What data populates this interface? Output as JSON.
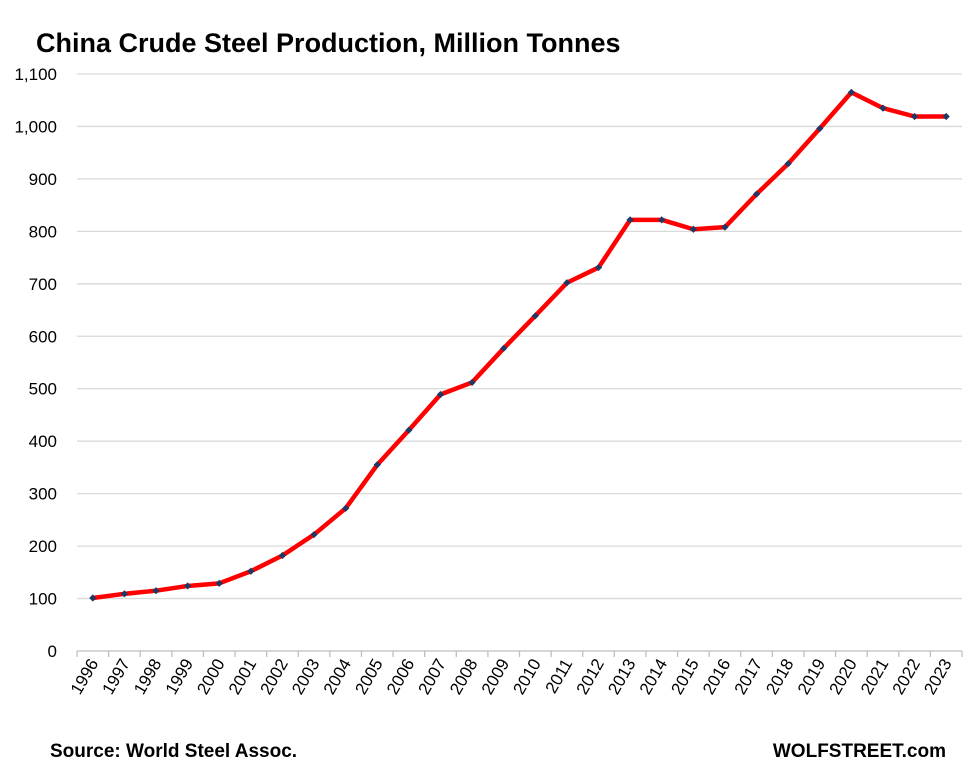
{
  "chart_data": {
    "type": "line",
    "title": "China Crude Steel Production, Million Tonnes",
    "xlabel": "",
    "ylabel": "",
    "categories": [
      "1996",
      "1997",
      "1998",
      "1999",
      "2000",
      "2001",
      "2002",
      "2003",
      "2004",
      "2005",
      "2006",
      "2007",
      "2008",
      "2009",
      "2010",
      "2011",
      "2012",
      "2013",
      "2014",
      "2015",
      "2016",
      "2017",
      "2018",
      "2019",
      "2020",
      "2021",
      "2022",
      "2023"
    ],
    "values": [
      101,
      109,
      115,
      124,
      129,
      152,
      182,
      222,
      272,
      355,
      421,
      489,
      512,
      577,
      639,
      702,
      731,
      822,
      822,
      804,
      808,
      871,
      929,
      996,
      1065,
      1035,
      1019,
      1019
    ],
    "ylim": [
      0,
      1100
    ],
    "yticks": [
      "0",
      "100",
      "200",
      "300",
      "400",
      "500",
      "600",
      "700",
      "800",
      "900",
      "1,000",
      "1,100"
    ],
    "grid": true,
    "legend": "none",
    "source": "Source: World Steel Assoc.",
    "brand": "WOLFSTREET.com",
    "colors": {
      "line": "#ff0000",
      "marker": "#1f3864",
      "grid": "#d9d9d9",
      "axis": "#bfbfbf"
    }
  }
}
